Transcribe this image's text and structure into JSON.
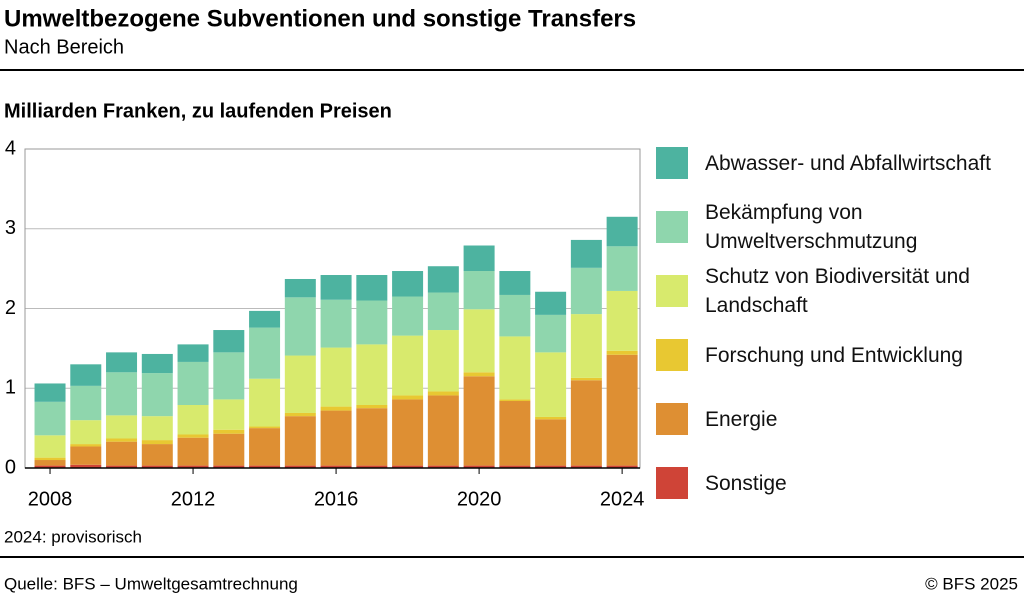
{
  "chart_data": {
    "type": "stacked_bar",
    "title": "Umweltbezogene Subventionen und sonstige Transfers",
    "subtitle": "Nach Bereich",
    "y_label": "Milliarden Franken, zu laufenden Preisen",
    "note": "2024: provisorisch",
    "source": "Quelle: BFS – Umweltgesamtrechnung",
    "copyright": "© BFS 2025",
    "x": [
      2008,
      2009,
      2010,
      2011,
      2012,
      2013,
      2014,
      2015,
      2016,
      2017,
      2018,
      2019,
      2020,
      2021,
      2022,
      2023,
      2024
    ],
    "xlim": [
      2007.3,
      2024.5
    ],
    "xticks": [
      2008,
      2012,
      2016,
      2020,
      2024
    ],
    "ylim": [
      0,
      4
    ],
    "yticks": [
      0,
      1,
      2,
      3,
      4
    ],
    "grid": true,
    "legend": "right",
    "series": [
      {
        "name": "Sonstige",
        "color": "#cf4437",
        "values": [
          0.03,
          0.04,
          0.03,
          0.03,
          0.03,
          0.03,
          0.03,
          0.03,
          0.03,
          0.03,
          0.03,
          0.03,
          0.03,
          0.03,
          0.03,
          0.03,
          0.03
        ]
      },
      {
        "name": "Energie",
        "color": "#de8f33",
        "values": [
          0.07,
          0.23,
          0.3,
          0.27,
          0.35,
          0.4,
          0.47,
          0.62,
          0.69,
          0.72,
          0.83,
          0.88,
          1.12,
          0.81,
          0.58,
          1.07,
          1.39
        ]
      },
      {
        "name": "Forschung und Entwicklung",
        "color": "#e8c832",
        "values": [
          0.03,
          0.03,
          0.04,
          0.05,
          0.04,
          0.05,
          0.02,
          0.04,
          0.05,
          0.04,
          0.05,
          0.05,
          0.05,
          0.02,
          0.03,
          0.03,
          0.05
        ]
      },
      {
        "name": "Schutz von Biodiversität und Landschaft",
        "color": "#d8ea6d",
        "values": [
          0.28,
          0.3,
          0.29,
          0.3,
          0.37,
          0.38,
          0.6,
          0.72,
          0.74,
          0.76,
          0.75,
          0.77,
          0.79,
          0.79,
          0.81,
          0.8,
          0.75
        ]
      },
      {
        "name": "Bekämpfung von Umweltverschmutzung",
        "color": "#8fd6ad",
        "values": [
          0.42,
          0.43,
          0.54,
          0.54,
          0.54,
          0.59,
          0.64,
          0.73,
          0.6,
          0.55,
          0.49,
          0.47,
          0.48,
          0.52,
          0.47,
          0.58,
          0.56
        ]
      },
      {
        "name": "Abwasser- und Abfallwirtschaft",
        "color": "#4db3a0",
        "values": [
          0.23,
          0.27,
          0.25,
          0.24,
          0.22,
          0.28,
          0.21,
          0.23,
          0.31,
          0.32,
          0.32,
          0.33,
          0.32,
          0.3,
          0.29,
          0.35,
          0.37
        ]
      }
    ]
  }
}
